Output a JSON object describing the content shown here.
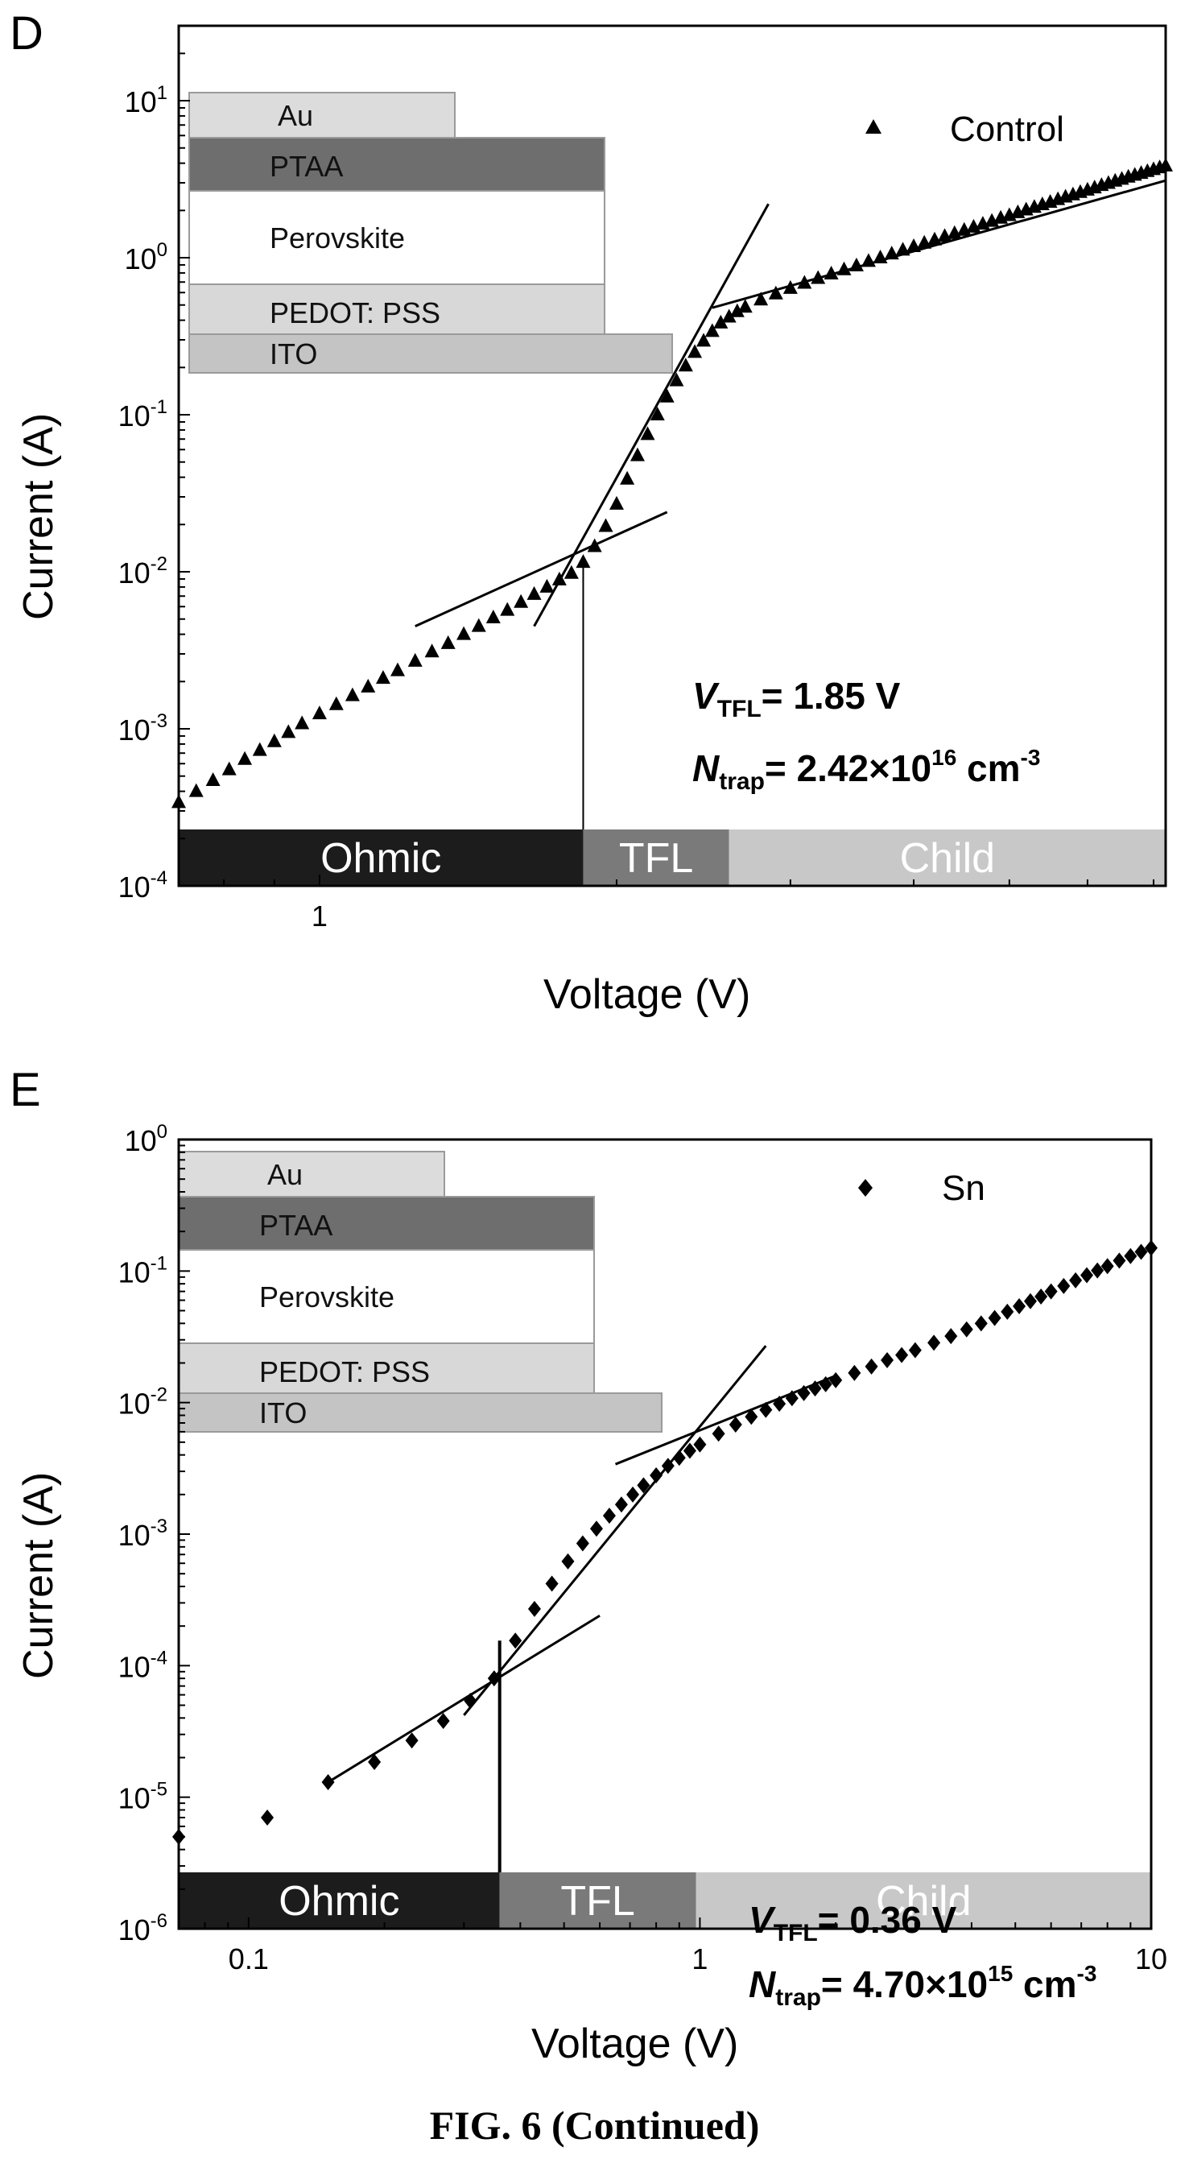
{
  "caption": "FIG. 6 (Continued)",
  "colors": {
    "ohmic": "#1c1c1c",
    "tfl": "#7a7a7a",
    "child": "#c8c8c8",
    "au": "#dcdcdc",
    "ptaa": "#6e6e6e",
    "perovskite": "#ffffff",
    "pedot": "#d8d8d8",
    "ito": "#c4c4c4"
  },
  "chart_data": [
    {
      "panel": "D",
      "type": "scatter",
      "xscale": "log",
      "yscale": "log",
      "xlim": [
        0.72,
        7.2
      ],
      "ylim": [
        0.0001,
        30
      ],
      "xlabel": "Voltage (V)",
      "ylabel": "Current (A)",
      "xticks": [
        {
          "v": 1,
          "label": "1"
        }
      ],
      "yticks": [
        {
          "v": 0.0001,
          "base": "10",
          "exp": "-4"
        },
        {
          "v": 0.001,
          "base": "10",
          "exp": "-3"
        },
        {
          "v": 0.01,
          "base": "10",
          "exp": "-2"
        },
        {
          "v": 0.1,
          "base": "10",
          "exp": "-1"
        },
        {
          "v": 1,
          "base": "10",
          "exp": "0"
        },
        {
          "v": 10,
          "base": "10",
          "exp": "1"
        }
      ],
      "legend": {
        "label": "Control",
        "marker": "triangle",
        "position": "top-right"
      },
      "series": [
        {
          "name": "Control",
          "marker": "triangle",
          "x": [
            0.72,
            0.75,
            0.78,
            0.81,
            0.84,
            0.87,
            0.9,
            0.93,
            0.96,
            1.0,
            1.04,
            1.08,
            1.12,
            1.16,
            1.2,
            1.25,
            1.3,
            1.35,
            1.4,
            1.45,
            1.5,
            1.55,
            1.6,
            1.65,
            1.7,
            1.75,
            1.8,
            1.85,
            1.9,
            1.95,
            2.0,
            2.05,
            2.1,
            2.15,
            2.2,
            2.25,
            2.3,
            2.35,
            2.4,
            2.45,
            2.5,
            2.55,
            2.6,
            2.65,
            2.7,
            2.8,
            2.9,
            3.0,
            3.1,
            3.2,
            3.3,
            3.4,
            3.5,
            3.6,
            3.7,
            3.8,
            3.9,
            4.0,
            4.1,
            4.2,
            4.3,
            4.4,
            4.5,
            4.6,
            4.7,
            4.8,
            4.9,
            5.0,
            5.1,
            5.2,
            5.3,
            5.4,
            5.5,
            5.6,
            5.7,
            5.8,
            5.9,
            6.0,
            6.1,
            6.2,
            6.3,
            6.4,
            6.5,
            6.6,
            6.7,
            6.8,
            6.9,
            7.0,
            7.1,
            7.2
          ],
          "y": [
            0.00034,
            0.0004,
            0.00047,
            0.00055,
            0.00064,
            0.00073,
            0.00083,
            0.00095,
            0.00108,
            0.00125,
            0.00143,
            0.00163,
            0.00185,
            0.0021,
            0.00235,
            0.0027,
            0.0031,
            0.0035,
            0.004,
            0.0045,
            0.0051,
            0.0057,
            0.0064,
            0.0072,
            0.008,
            0.0089,
            0.0098,
            0.0115,
            0.0145,
            0.0195,
            0.027,
            0.039,
            0.055,
            0.075,
            0.1,
            0.13,
            0.165,
            0.205,
            0.25,
            0.295,
            0.34,
            0.385,
            0.42,
            0.455,
            0.485,
            0.54,
            0.59,
            0.64,
            0.69,
            0.74,
            0.79,
            0.84,
            0.89,
            0.95,
            1.0,
            1.06,
            1.12,
            1.18,
            1.24,
            1.3,
            1.37,
            1.43,
            1.5,
            1.57,
            1.64,
            1.71,
            1.79,
            1.86,
            1.94,
            2.02,
            2.1,
            2.18,
            2.26,
            2.35,
            2.44,
            2.52,
            2.61,
            2.7,
            2.79,
            2.89,
            2.98,
            3.08,
            3.17,
            3.27,
            3.36,
            3.45,
            3.55,
            3.65,
            3.75,
            3.85
          ]
        }
      ],
      "fit_lines": [
        {
          "from": [
            1.25,
            0.0045
          ],
          "to": [
            2.25,
            0.024
          ]
        },
        {
          "from": [
            1.65,
            0.0045
          ],
          "to": [
            2.85,
            2.2
          ]
        },
        {
          "from": [
            2.5,
            0.48
          ],
          "to": [
            7.2,
            3.1
          ]
        }
      ],
      "vtfl_marker_x": 1.85,
      "regions": [
        {
          "label": "Ohmic",
          "from": 0.72,
          "to": 1.85,
          "color_key": "ohmic",
          "text_color": "#ffffff"
        },
        {
          "label": "TFL",
          "from": 1.85,
          "to": 2.6,
          "color_key": "tfl",
          "text_color": "#ffffff"
        },
        {
          "label": "Child",
          "from": 2.6,
          "to": 7.2,
          "color_key": "child",
          "text_color": "#ffffff"
        }
      ],
      "annotations": {
        "vtfl": {
          "var": "V",
          "sub": "TFL",
          "text": "= 1.85 V"
        },
        "ntrap": {
          "var": "N",
          "sub": "trap",
          "text1": "= 2.42×10",
          "sup1": "16",
          "text2": " cm",
          "sup2": "-3"
        }
      },
      "device_stack": [
        {
          "label": "Au",
          "color_key": "au",
          "width": 0.55
        },
        {
          "label": "PTAA",
          "color_key": "ptaa",
          "width": 0.86
        },
        {
          "label": "Perovskite",
          "color_key": "perovskite",
          "width": 0.86
        },
        {
          "label": "PEDOT: PSS",
          "color_key": "pedot",
          "width": 0.86
        },
        {
          "label": "ITO",
          "color_key": "ito",
          "width": 1.0
        }
      ]
    },
    {
      "panel": "E",
      "type": "scatter",
      "xscale": "log",
      "yscale": "log",
      "xlim": [
        0.07,
        10
      ],
      "ylim": [
        1e-06,
        1
      ],
      "xlabel": "Voltage (V)",
      "ylabel": "Current (A)",
      "xticks": [
        {
          "v": 0.1,
          "label": "0.1"
        },
        {
          "v": 1,
          "label": "1"
        },
        {
          "v": 10,
          "label": "10"
        }
      ],
      "yticks": [
        {
          "v": 1e-06,
          "base": "10",
          "exp": "-6"
        },
        {
          "v": 1e-05,
          "base": "10",
          "exp": "-5"
        },
        {
          "v": 0.0001,
          "base": "10",
          "exp": "-4"
        },
        {
          "v": 0.001,
          "base": "10",
          "exp": "-3"
        },
        {
          "v": 0.01,
          "base": "10",
          "exp": "-2"
        },
        {
          "v": 0.1,
          "base": "10",
          "exp": "-1"
        },
        {
          "v": 1,
          "base": "10",
          "exp": "0"
        }
      ],
      "legend": {
        "label": "Sn",
        "marker": "diamond",
        "position": "top-right"
      },
      "series": [
        {
          "name": "Sn",
          "marker": "diamond",
          "x": [
            0.07,
            0.11,
            0.15,
            0.19,
            0.23,
            0.27,
            0.31,
            0.35,
            0.39,
            0.43,
            0.47,
            0.51,
            0.55,
            0.59,
            0.63,
            0.67,
            0.71,
            0.75,
            0.8,
            0.85,
            0.9,
            0.95,
            1.0,
            1.1,
            1.2,
            1.3,
            1.4,
            1.5,
            1.6,
            1.7,
            1.8,
            1.9,
            2.0,
            2.2,
            2.4,
            2.6,
            2.8,
            3.0,
            3.3,
            3.6,
            3.9,
            4.2,
            4.5,
            4.8,
            5.1,
            5.4,
            5.7,
            6.0,
            6.4,
            6.8,
            7.2,
            7.6,
            8.0,
            8.5,
            9.0,
            9.5,
            10.0
          ],
          "y": [
            5e-06,
            7e-06,
            1.3e-05,
            1.85e-05,
            2.7e-05,
            3.8e-05,
            5.4e-05,
            8e-05,
            0.000155,
            0.00027,
            0.00042,
            0.00062,
            0.00085,
            0.0011,
            0.00138,
            0.00168,
            0.002,
            0.00235,
            0.0028,
            0.0033,
            0.0038,
            0.0043,
            0.0048,
            0.0058,
            0.0068,
            0.0078,
            0.0088,
            0.0098,
            0.0108,
            0.0118,
            0.0128,
            0.0138,
            0.0148,
            0.0168,
            0.0188,
            0.021,
            0.023,
            0.025,
            0.0285,
            0.032,
            0.036,
            0.04,
            0.044,
            0.049,
            0.054,
            0.059,
            0.064,
            0.07,
            0.077,
            0.085,
            0.093,
            0.101,
            0.109,
            0.12,
            0.13,
            0.14,
            0.15
          ]
        }
      ],
      "fit_lines": [
        {
          "from": [
            0.15,
            1.3e-05
          ],
          "to": [
            0.6,
            0.00024
          ]
        },
        {
          "from": [
            0.3,
            4.2e-05
          ],
          "to": [
            1.4,
            0.027
          ]
        },
        {
          "from": [
            0.65,
            0.0034
          ],
          "to": [
            2.0,
            0.016
          ]
        }
      ],
      "vtfl_marker_x": 0.36,
      "regions": [
        {
          "label": "Ohmic",
          "from": 0.07,
          "to": 0.36,
          "color_key": "ohmic",
          "text_color": "#ffffff"
        },
        {
          "label": "TFL",
          "from": 0.36,
          "to": 0.98,
          "color_key": "tfl",
          "text_color": "#ffffff"
        },
        {
          "label": "Child",
          "from": 0.98,
          "to": 10,
          "color_key": "child",
          "text_color": "#ffffff"
        }
      ],
      "annotations": {
        "vtfl": {
          "var": "V",
          "sub": "TFL",
          "text": "= 0.36 V"
        },
        "ntrap": {
          "var": "N",
          "sub": "trap",
          "text1": "= 4.70×10",
          "sup1": "15",
          "text2": " cm",
          "sup2": "-3"
        }
      },
      "device_stack": [
        {
          "label": "Au",
          "color_key": "au",
          "width": 0.55
        },
        {
          "label": "PTAA",
          "color_key": "ptaa",
          "width": 0.86
        },
        {
          "label": "Perovskite",
          "color_key": "perovskite",
          "width": 0.86
        },
        {
          "label": "PEDOT: PSS",
          "color_key": "pedot",
          "width": 0.86
        },
        {
          "label": "ITO",
          "color_key": "ito",
          "width": 1.0
        }
      ]
    }
  ]
}
